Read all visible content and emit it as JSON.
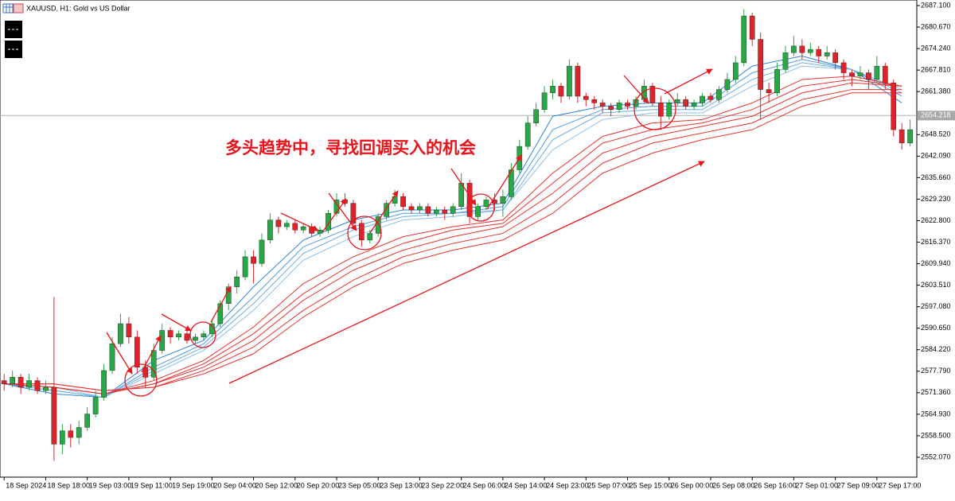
{
  "header": {
    "title": "XAUUSD, H1:  Gold vs US Dollar"
  },
  "chart_data": {
    "type": "candlestick",
    "annotation": "多头趋势中，寻找回调买入的机会",
    "up_color": "#27a844",
    "down_color": "#e0232b",
    "xlim": [
      -0.5,
      109.8
    ],
    "ylim": [
      2546.13,
      2688.76
    ],
    "xticks": [
      {
        "value": 0,
        "label": "18 Sep 2024"
      },
      {
        "value": 5,
        "label": "18 Sep 18:00"
      },
      {
        "value": 10,
        "label": "19 Sep 03:00"
      },
      {
        "value": 15,
        "label": "19 Sep 11:00"
      },
      {
        "value": 20,
        "label": "19 Sep 19:00"
      },
      {
        "value": 25,
        "label": "20 Sep 04:00"
      },
      {
        "value": 30,
        "label": "20 Sep 12:00"
      },
      {
        "value": 35,
        "label": "20 Sep 20:00"
      },
      {
        "value": 40,
        "label": "23 Sep 05:00"
      },
      {
        "value": 45,
        "label": "23 Sep 13:00"
      },
      {
        "value": 50,
        "label": "23 Sep 22:00"
      },
      {
        "value": 55,
        "label": "24 Sep 06:00"
      },
      {
        "value": 60,
        "label": "24 Sep 14:00"
      },
      {
        "value": 65,
        "label": "24 Sep 23:00"
      },
      {
        "value": 70,
        "label": "25 Sep 07:00"
      },
      {
        "value": 75,
        "label": "25 Sep 15:00"
      },
      {
        "value": 80,
        "label": "26 Sep 00:00"
      },
      {
        "value": 85,
        "label": "26 Sep 08:00"
      },
      {
        "value": 90,
        "label": "26 Sep 16:00"
      },
      {
        "value": 95,
        "label": "27 Sep 01:00"
      },
      {
        "value": 100,
        "label": "27 Sep 09:00"
      },
      {
        "value": 105,
        "label": "27 Sep 17:00"
      }
    ],
    "yticks": [
      {
        "value": 2687.1,
        "label": "2687.100"
      },
      {
        "value": 2680.67,
        "label": "2680.670"
      },
      {
        "value": 2674.24,
        "label": "2674.240"
      },
      {
        "value": 2667.81,
        "label": "2667.810"
      },
      {
        "value": 2661.38,
        "label": "2661.380"
      },
      {
        "value": 2648.52,
        "label": "2648.520"
      },
      {
        "value": 2642.09,
        "label": "2642.090"
      },
      {
        "value": 2635.66,
        "label": "2635.660"
      },
      {
        "value": 2629.23,
        "label": "2629.230"
      },
      {
        "value": 2622.8,
        "label": "2622.800"
      },
      {
        "value": 2616.37,
        "label": "2616.370"
      },
      {
        "value": 2609.94,
        "label": "2609.940"
      },
      {
        "value": 2603.51,
        "label": "2603.510"
      },
      {
        "value": 2597.08,
        "label": "2597.080"
      },
      {
        "value": 2590.65,
        "label": "2590.650"
      },
      {
        "value": 2584.22,
        "label": "2584.220"
      },
      {
        "value": 2577.79,
        "label": "2577.790"
      },
      {
        "value": 2571.36,
        "label": "2571.360"
      },
      {
        "value": 2564.93,
        "label": "2564.930"
      },
      {
        "value": 2558.5,
        "label": "2558.500"
      },
      {
        "value": 2552.07,
        "label": "2552.070"
      }
    ],
    "current_price": 2654.218,
    "ohlc": [
      [
        2575,
        2577,
        2572,
        2574
      ],
      [
        2574,
        2578,
        2573,
        2576
      ],
      [
        2576,
        2577,
        2571,
        2573
      ],
      [
        2573,
        2577,
        2572,
        2575
      ],
      [
        2575,
        2576,
        2571,
        2572
      ],
      [
        2572,
        2575,
        2571,
        2573
      ],
      [
        2573,
        2600,
        2551,
        2556
      ],
      [
        2556,
        2562,
        2553,
        2560
      ],
      [
        2560,
        2562,
        2555,
        2558
      ],
      [
        2558,
        2563,
        2556,
        2561
      ],
      [
        2561,
        2567,
        2560,
        2565
      ],
      [
        2565,
        2572,
        2564,
        2570
      ],
      [
        2570,
        2580,
        2569,
        2578
      ],
      [
        2578,
        2588,
        2577,
        2586
      ],
      [
        2586,
        2595,
        2585,
        2592
      ],
      [
        2592,
        2594,
        2586,
        2588
      ],
      [
        2588,
        2590,
        2577,
        2579
      ],
      [
        2579,
        2581,
        2573,
        2576
      ],
      [
        2576,
        2586,
        2575,
        2584
      ],
      [
        2584,
        2592,
        2583,
        2590
      ],
      [
        2590,
        2591,
        2586,
        2588
      ],
      [
        2588,
        2590,
        2587,
        2589
      ],
      [
        2589,
        2590,
        2586,
        2587
      ],
      [
        2587,
        2589,
        2586,
        2588
      ],
      [
        2588,
        2590,
        2587,
        2589
      ],
      [
        2589,
        2593,
        2588,
        2592
      ],
      [
        2592,
        2599,
        2591,
        2598
      ],
      [
        2598,
        2604,
        2596,
        2603
      ],
      [
        2603,
        2608,
        2601,
        2606
      ],
      [
        2606,
        2614,
        2605,
        2612
      ],
      [
        2612,
        2614,
        2604,
        2610
      ],
      [
        2610,
        2619,
        2609,
        2617
      ],
      [
        2617,
        2625,
        2616,
        2623
      ],
      [
        2623,
        2624,
        2619,
        2621
      ],
      [
        2621,
        2623,
        2620,
        2622
      ],
      [
        2622,
        2623,
        2619,
        2620
      ],
      [
        2620,
        2622,
        2619,
        2621
      ],
      [
        2621,
        2622,
        2618,
        2619
      ],
      [
        2619,
        2621,
        2618,
        2620
      ],
      [
        2620,
        2626,
        2619,
        2625
      ],
      [
        2625,
        2631,
        2624,
        2629
      ],
      [
        2629,
        2631,
        2627,
        2628
      ],
      [
        2628,
        2629,
        2621,
        2622
      ],
      [
        2622,
        2623,
        2615,
        2617
      ],
      [
        2617,
        2620,
        2616,
        2619
      ],
      [
        2619,
        2625,
        2618,
        2624
      ],
      [
        2624,
        2629,
        2623,
        2628
      ],
      [
        2628,
        2632,
        2627,
        2630
      ],
      [
        2630,
        2631,
        2626,
        2627
      ],
      [
        2627,
        2628,
        2625,
        2626
      ],
      [
        2626,
        2628,
        2625,
        2627
      ],
      [
        2627,
        2628,
        2624,
        2625
      ],
      [
        2625,
        2627,
        2624,
        2626
      ],
      [
        2626,
        2627,
        2623,
        2625
      ],
      [
        2625,
        2628,
        2624,
        2627
      ],
      [
        2627,
        2637,
        2626,
        2634
      ],
      [
        2634,
        2635,
        2622,
        2624
      ],
      [
        2624,
        2628,
        2623,
        2627
      ],
      [
        2627,
        2630,
        2626,
        2629
      ],
      [
        2629,
        2631,
        2626,
        2628
      ],
      [
        2628,
        2632,
        2624,
        2630
      ],
      [
        2630,
        2640,
        2629,
        2638
      ],
      [
        2638,
        2647,
        2637,
        2645
      ],
      [
        2645,
        2654,
        2644,
        2652
      ],
      [
        2652,
        2658,
        2651,
        2656
      ],
      [
        2656,
        2663,
        2655,
        2661
      ],
      [
        2661,
        2665,
        2659,
        2663
      ],
      [
        2663,
        2664,
        2658,
        2660
      ],
      [
        2660,
        2671,
        2659,
        2669
      ],
      [
        2669,
        2670,
        2658,
        2660
      ],
      [
        2660,
        2661,
        2657,
        2659
      ],
      [
        2659,
        2660,
        2656,
        2658
      ],
      [
        2658,
        2659,
        2655,
        2657
      ],
      [
        2657,
        2658,
        2654,
        2656
      ],
      [
        2656,
        2659,
        2655,
        2658
      ],
      [
        2658,
        2659,
        2656,
        2657
      ],
      [
        2657,
        2660,
        2656,
        2659
      ],
      [
        2659,
        2665,
        2658,
        2663
      ],
      [
        2663,
        2664,
        2657,
        2658
      ],
      [
        2658,
        2660,
        2650,
        2654
      ],
      [
        2654,
        2659,
        2653,
        2658
      ],
      [
        2658,
        2661,
        2657,
        2659
      ],
      [
        2659,
        2660,
        2656,
        2657
      ],
      [
        2657,
        2659,
        2656,
        2658
      ],
      [
        2658,
        2661,
        2657,
        2660
      ],
      [
        2660,
        2661,
        2658,
        2659
      ],
      [
        2659,
        2663,
        2658,
        2662
      ],
      [
        2662,
        2667,
        2661,
        2665
      ],
      [
        2665,
        2672,
        2664,
        2670
      ],
      [
        2670,
        2686,
        2669,
        2684
      ],
      [
        2684,
        2685,
        2675,
        2677
      ],
      [
        2677,
        2679,
        2653,
        2662
      ],
      [
        2662,
        2664,
        2658,
        2661
      ],
      [
        2661,
        2670,
        2660,
        2668
      ],
      [
        2668,
        2675,
        2667,
        2673
      ],
      [
        2673,
        2678,
        2672,
        2675
      ],
      [
        2675,
        2677,
        2671,
        2673
      ],
      [
        2673,
        2676,
        2672,
        2674
      ],
      [
        2674,
        2675,
        2670,
        2672
      ],
      [
        2672,
        2675,
        2671,
        2673
      ],
      [
        2673,
        2674,
        2668,
        2670
      ],
      [
        2670,
        2671,
        2665,
        2667
      ],
      [
        2667,
        2668,
        2663,
        2666
      ],
      [
        2666,
        2669,
        2665,
        2667
      ],
      [
        2667,
        2668,
        2662,
        2665
      ],
      [
        2665,
        2672,
        2664,
        2669
      ],
      [
        2669,
        2670,
        2662,
        2664
      ],
      [
        2664,
        2665,
        2648,
        2650
      ],
      [
        2650,
        2652,
        2644,
        2646
      ],
      [
        2646,
        2653,
        2645,
        2650
      ]
    ],
    "line_x": [
      0,
      6,
      12,
      18,
      24,
      30,
      36,
      42,
      48,
      54,
      60,
      66,
      72,
      78,
      84,
      90,
      96,
      102,
      108
    ],
    "lines": [
      {
        "color": "#2f86d8",
        "values": [
          2574,
          2571,
          2570,
          2581,
          2587,
          2603,
          2617,
          2623,
          2626,
          2626,
          2628,
          2654,
          2657,
          2658,
          2658,
          2669,
          2672,
          2668,
          2658
        ]
      },
      {
        "color": "#4f9be0",
        "values": [
          2574,
          2572,
          2570,
          2579,
          2586,
          2600,
          2615,
          2621,
          2625,
          2625,
          2627,
          2650,
          2656,
          2657,
          2657,
          2667,
          2671,
          2668,
          2660
        ]
      },
      {
        "color": "#6eaee6",
        "values": [
          2574,
          2572,
          2570,
          2578,
          2585,
          2598,
          2613,
          2620,
          2624,
          2625,
          2626,
          2647,
          2655,
          2656,
          2656,
          2665,
          2670,
          2668,
          2661
        ]
      },
      {
        "color": "#8dc0ec",
        "values": [
          2574,
          2573,
          2570,
          2577,
          2584,
          2596,
          2611,
          2618,
          2623,
          2624,
          2626,
          2644,
          2653,
          2655,
          2655,
          2663,
          2669,
          2668,
          2662
        ]
      },
      {
        "color": "#e5342f",
        "values": [
          2574,
          2573,
          2571,
          2575,
          2581,
          2591,
          2604,
          2612,
          2618,
          2621,
          2623,
          2637,
          2648,
          2652,
          2653,
          2658,
          2665,
          2666,
          2663
        ]
      },
      {
        "color": "#e5342f",
        "values": [
          2574,
          2573,
          2571,
          2574,
          2580,
          2589,
          2601,
          2610,
          2616,
          2620,
          2622,
          2634,
          2646,
          2650,
          2652,
          2656,
          2663,
          2665,
          2663
        ]
      },
      {
        "color": "#e5342f",
        "values": [
          2574,
          2573,
          2571,
          2574,
          2579,
          2587,
          2599,
          2608,
          2614,
          2618,
          2621,
          2631,
          2643,
          2648,
          2651,
          2654,
          2661,
          2664,
          2663
        ]
      },
      {
        "color": "#e5342f",
        "values": [
          2574,
          2574,
          2572,
          2573,
          2578,
          2585,
          2596,
          2605,
          2612,
          2616,
          2619,
          2628,
          2640,
          2646,
          2649,
          2652,
          2659,
          2662,
          2662
        ]
      },
      {
        "color": "#e5342f",
        "values": [
          2574,
          2574,
          2572,
          2573,
          2577,
          2583,
          2594,
          2603,
          2610,
          2614,
          2617,
          2625,
          2637,
          2643,
          2647,
          2650,
          2657,
          2661,
          2661
        ]
      }
    ]
  }
}
